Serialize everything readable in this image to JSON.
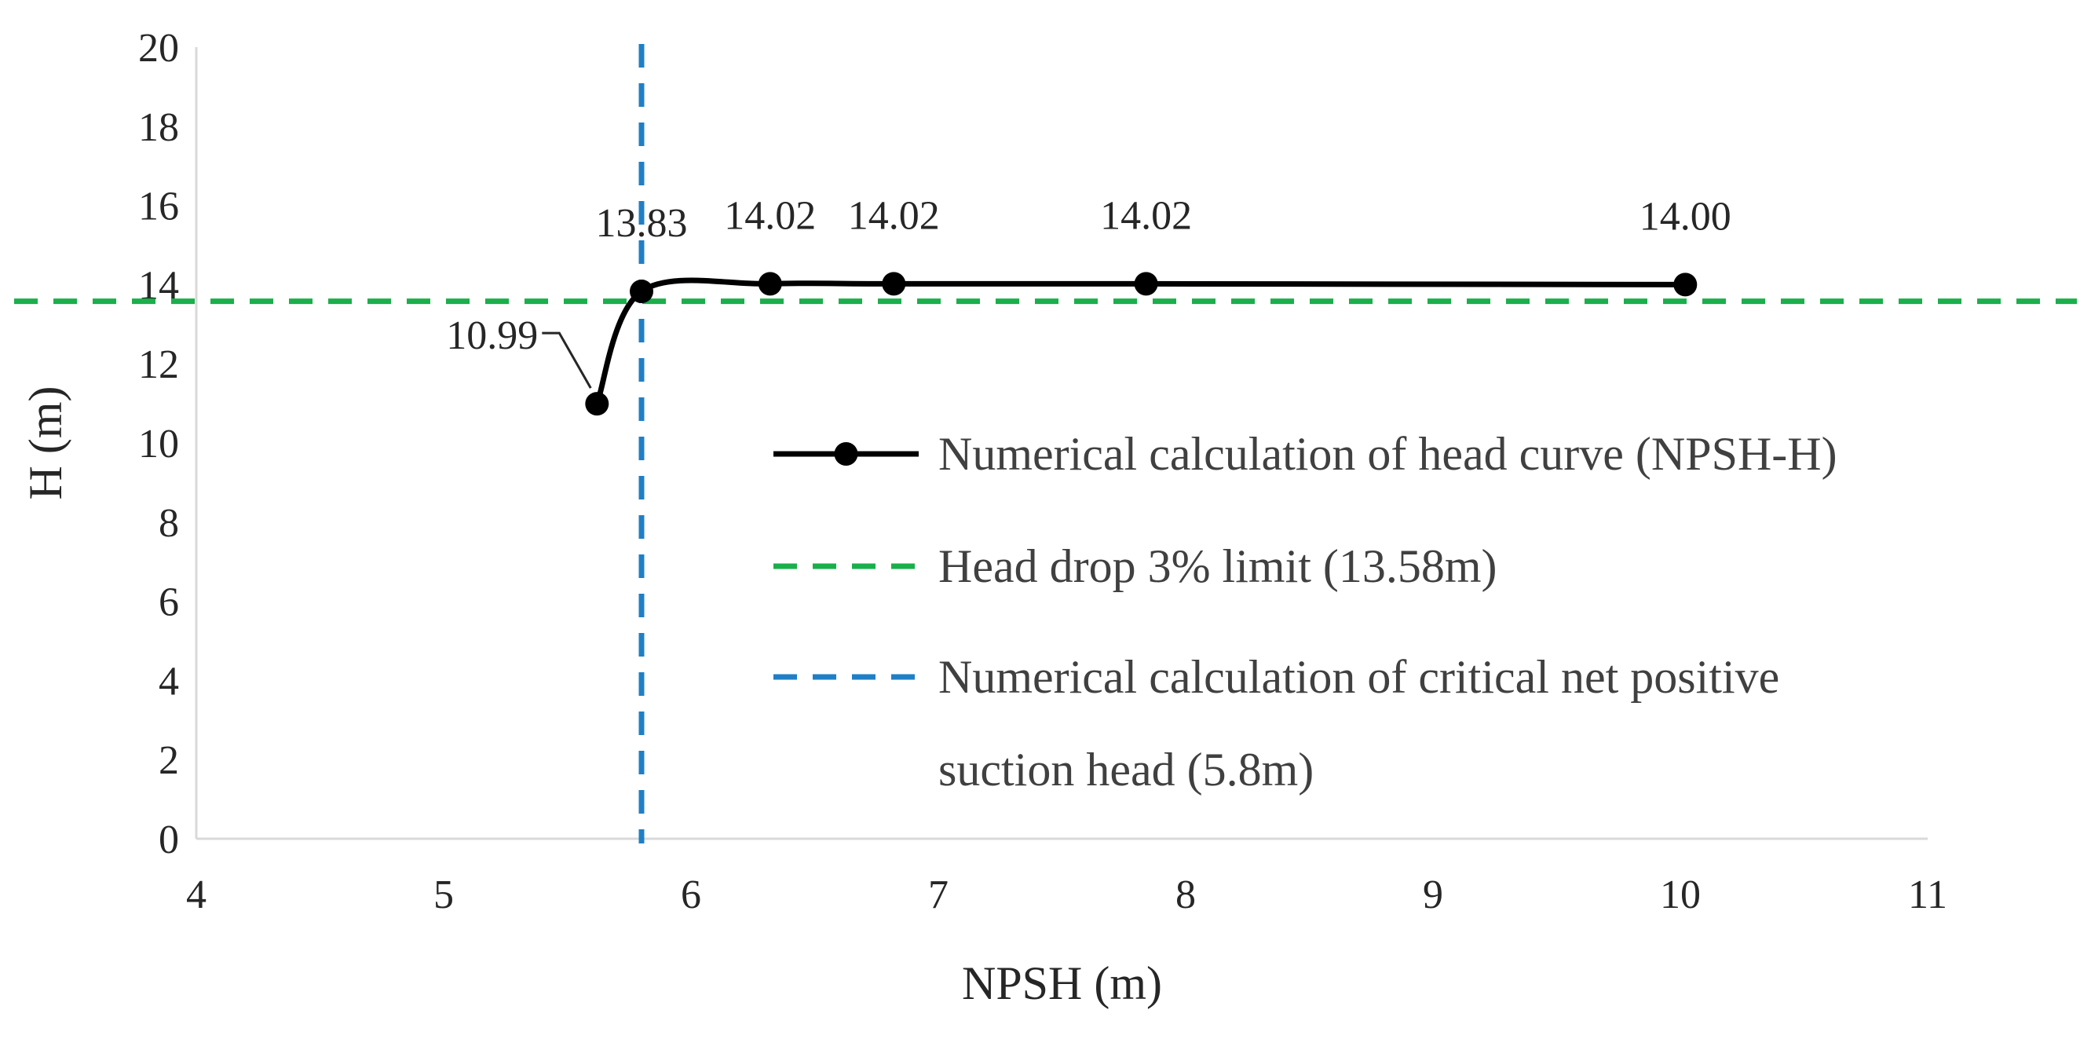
{
  "chart_data": {
    "type": "line",
    "title": "",
    "xlabel": "NPSH (m)",
    "ylabel": "H (m)",
    "xlim": [
      4,
      11
    ],
    "ylim": [
      0,
      20
    ],
    "xticks": [
      4,
      5,
      6,
      7,
      8,
      9,
      10,
      11
    ],
    "yticks": [
      0,
      2,
      4,
      6,
      8,
      10,
      12,
      14,
      16,
      18,
      20
    ],
    "grid": false,
    "legend_position": "right",
    "series": [
      {
        "name": "Numerical calculation of head curve (NPSH-H)",
        "style": "solid-smooth-markers",
        "color": "#000000",
        "x": [
          5.62,
          5.8,
          6.32,
          6.82,
          7.84,
          10.02
        ],
        "y": [
          10.99,
          13.83,
          14.02,
          14.02,
          14.02,
          14.0
        ],
        "labels": [
          "10.99",
          "13.83",
          "14.02",
          "14.02",
          "14.02",
          "14.00"
        ]
      }
    ],
    "reference_lines": [
      {
        "name": "Head drop 3% limit (13.58m)",
        "orientation": "horizontal",
        "value": 13.58,
        "style": "dashed",
        "color": "#1aaf4b"
      },
      {
        "name_line1": "Numerical calculation of critical net positive",
        "name_line2": "suction head (5.8m)",
        "orientation": "vertical",
        "value": 5.8,
        "style": "dashed",
        "color": "#1f7fc6"
      }
    ]
  }
}
